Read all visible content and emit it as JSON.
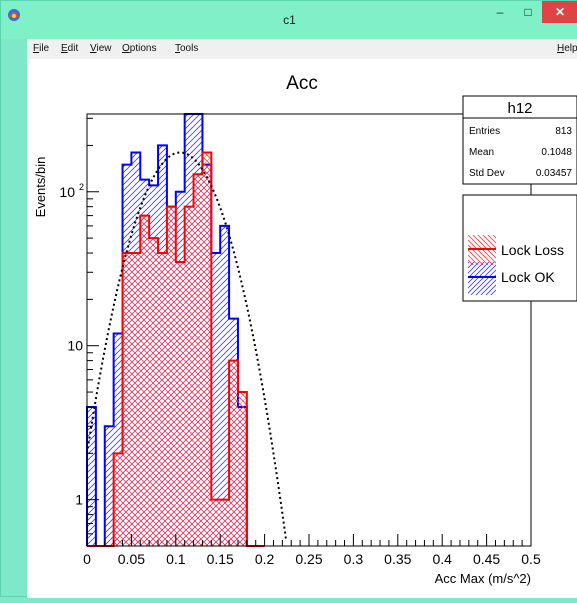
{
  "window": {
    "title": "c1",
    "minimize_glyph": "–",
    "maximize_glyph": "□",
    "close_glyph": "✕"
  },
  "menu": {
    "file": "File",
    "edit": "Edit",
    "view": "View",
    "options": "Options",
    "tools": "Tools",
    "help": "Help"
  },
  "stats_box": {
    "name": "h12",
    "rows": [
      {
        "label": "Entries",
        "value": "813"
      },
      {
        "label": "Mean",
        "value": "0.1048"
      },
      {
        "label": "Std Dev",
        "value": "0.03457"
      }
    ]
  },
  "chart_data": {
    "type": "bar",
    "title": "Acc",
    "xlabel": "Acc Max (m/s^2)",
    "ylabel": "Events/bin",
    "xlim": [
      0,
      0.5
    ],
    "ylim": [
      0.5,
      320
    ],
    "ylog": true,
    "x_ticks": [
      "0",
      "0.05",
      "0.1",
      "0.15",
      "0.2",
      "0.25",
      "0.3",
      "0.35",
      "0.4",
      "0.45",
      "0.5"
    ],
    "y_ticks": [
      {
        "value": 1,
        "label": "1"
      },
      {
        "value": 10,
        "label": "10"
      },
      {
        "value": 100,
        "label": "10",
        "sup": "2"
      }
    ],
    "bin_edges": [
      0,
      0.01,
      0.02,
      0.03,
      0.04,
      0.05,
      0.06,
      0.07,
      0.08,
      0.09,
      0.1,
      0.11,
      0.12,
      0.13,
      0.14,
      0.15,
      0.16,
      0.17,
      0.18,
      0.19,
      0.2
    ],
    "series": [
      {
        "name": "Lock OK",
        "color": "#0000ff",
        "hatch": "diagonal /",
        "values": [
          4,
          0,
          3,
          12,
          150,
          180,
          120,
          110,
          200,
          80,
          100,
          320,
          320,
          150,
          40,
          60,
          15,
          4,
          0,
          0
        ]
      },
      {
        "name": "Lock Loss",
        "color": "#ff0000",
        "hatch": "diagonal \\ crossed",
        "values": [
          0,
          0,
          0,
          2,
          40,
          40,
          70,
          50,
          40,
          80,
          35,
          80,
          130,
          180,
          1,
          1,
          8,
          5,
          0,
          0
        ]
      }
    ],
    "fit": {
      "type": "gaussian",
      "style": "dotted",
      "color": "#000000",
      "mean": 0.105,
      "sigma": 0.035,
      "peak": 180
    },
    "legend": {
      "placement": "right",
      "entries": [
        "Lock Loss",
        "Lock OK"
      ]
    }
  }
}
